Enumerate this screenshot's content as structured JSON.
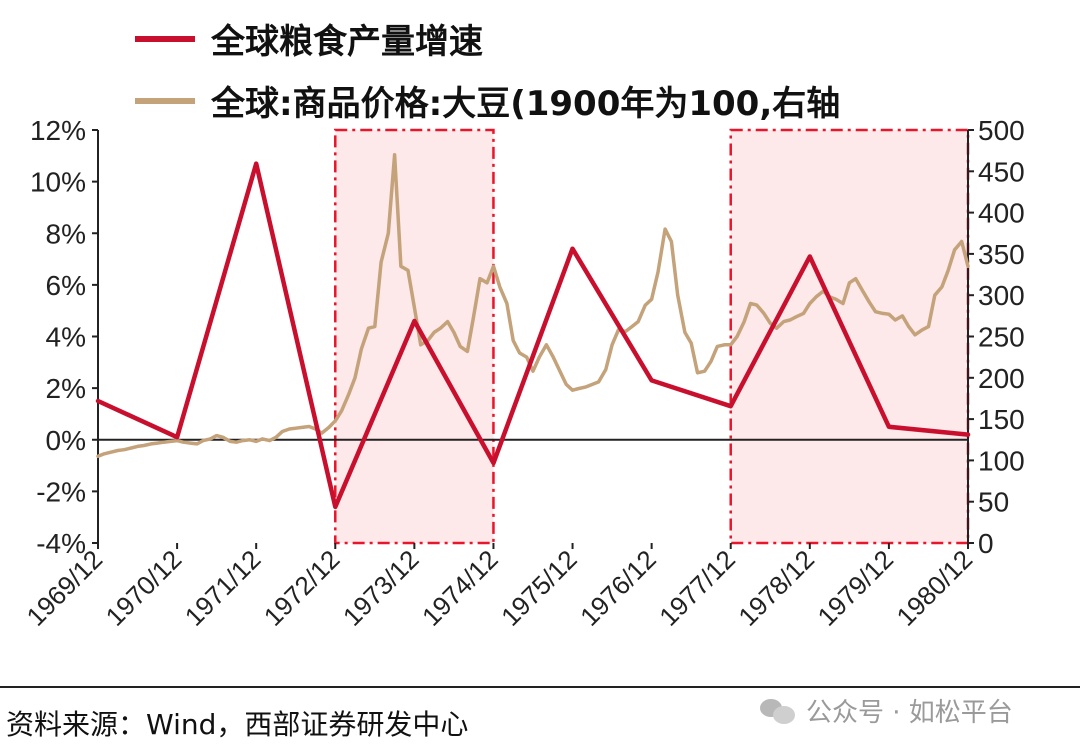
{
  "chart_data": {
    "type": "line",
    "legend": [
      {
        "name": "全球粮食产量增速",
        "color": "#c8102e"
      },
      {
        "name": "全球:商品价格:大豆(1900年为100,右轴",
        "color": "#c4a27a"
      }
    ],
    "x_categories": [
      "1969/12",
      "1970/12",
      "1971/12",
      "1972/12",
      "1973/12",
      "1974/12",
      "1975/12",
      "1976/12",
      "1977/12",
      "1978/12",
      "1979/12",
      "1980/12"
    ],
    "y_left": {
      "ylim": [
        -4,
        12
      ],
      "ticks": [
        "12%",
        "10%",
        "8%",
        "6%",
        "4%",
        "2%",
        "0%",
        "-2%",
        "-4%"
      ]
    },
    "y_right": {
      "ylim": [
        0,
        500
      ],
      "ticks": [
        "500",
        "450",
        "400",
        "350",
        "300",
        "250",
        "200",
        "150",
        "100",
        "50",
        "0"
      ]
    },
    "shaded_ranges": [
      [
        3.0,
        5.0
      ],
      [
        8.0,
        11.0
      ]
    ],
    "series": [
      {
        "name": "全球粮食产量增速",
        "axis": "left",
        "color": "#c8102e",
        "points": [
          [
            0,
            1.5
          ],
          [
            1,
            0.1
          ],
          [
            2,
            10.7
          ],
          [
            3,
            -2.6
          ],
          [
            4,
            4.6
          ],
          [
            5,
            -0.9
          ],
          [
            6,
            7.4
          ],
          [
            7,
            2.3
          ],
          [
            8,
            1.3
          ],
          [
            9,
            7.1
          ],
          [
            10,
            0.5
          ],
          [
            11,
            0.2
          ]
        ]
      },
      {
        "name": "全球:商品价格:大豆(1900年为100,右轴",
        "axis": "right",
        "color": "#c4a27a",
        "points": [
          [
            0,
            105
          ],
          [
            0.08,
            108
          ],
          [
            0.17,
            110
          ],
          [
            0.25,
            112
          ],
          [
            0.33,
            113
          ],
          [
            0.42,
            115
          ],
          [
            0.5,
            117
          ],
          [
            0.58,
            118
          ],
          [
            0.67,
            120
          ],
          [
            0.75,
            121
          ],
          [
            0.83,
            122
          ],
          [
            0.92,
            123
          ],
          [
            1,
            124
          ],
          [
            1.08,
            122
          ],
          [
            1.17,
            121
          ],
          [
            1.25,
            120
          ],
          [
            1.33,
            124
          ],
          [
            1.42,
            126
          ],
          [
            1.5,
            130
          ],
          [
            1.58,
            128
          ],
          [
            1.67,
            123
          ],
          [
            1.75,
            122
          ],
          [
            1.83,
            124
          ],
          [
            1.92,
            125
          ],
          [
            2,
            123
          ],
          [
            2.08,
            126
          ],
          [
            2.17,
            124
          ],
          [
            2.25,
            128
          ],
          [
            2.33,
            135
          ],
          [
            2.42,
            138
          ],
          [
            2.5,
            139
          ],
          [
            2.58,
            140
          ],
          [
            2.67,
            141
          ],
          [
            2.75,
            138
          ],
          [
            2.83,
            133
          ],
          [
            2.92,
            140
          ],
          [
            3,
            148
          ],
          [
            3.08,
            160
          ],
          [
            3.17,
            180
          ],
          [
            3.25,
            200
          ],
          [
            3.33,
            235
          ],
          [
            3.42,
            260
          ],
          [
            3.5,
            262
          ],
          [
            3.58,
            340
          ],
          [
            3.67,
            375
          ],
          [
            3.75,
            470
          ],
          [
            3.83,
            335
          ],
          [
            3.92,
            330
          ],
          [
            4,
            285
          ],
          [
            4.08,
            240
          ],
          [
            4.17,
            245
          ],
          [
            4.25,
            255
          ],
          [
            4.33,
            260
          ],
          [
            4.42,
            268
          ],
          [
            4.5,
            255
          ],
          [
            4.58,
            238
          ],
          [
            4.67,
            232
          ],
          [
            4.75,
            275
          ],
          [
            4.83,
            320
          ],
          [
            4.92,
            315
          ],
          [
            5,
            335
          ],
          [
            5.08,
            310
          ],
          [
            5.17,
            290
          ],
          [
            5.25,
            245
          ],
          [
            5.33,
            230
          ],
          [
            5.42,
            225
          ],
          [
            5.5,
            208
          ],
          [
            5.58,
            225
          ],
          [
            5.67,
            240
          ],
          [
            5.75,
            226
          ],
          [
            5.83,
            210
          ],
          [
            5.92,
            192
          ],
          [
            6,
            185
          ],
          [
            6.08,
            187
          ],
          [
            6.17,
            189
          ],
          [
            6.25,
            192
          ],
          [
            6.33,
            195
          ],
          [
            6.42,
            210
          ],
          [
            6.5,
            240
          ],
          [
            6.58,
            258
          ],
          [
            6.67,
            256
          ],
          [
            6.75,
            262
          ],
          [
            6.83,
            268
          ],
          [
            6.92,
            288
          ],
          [
            7,
            295
          ],
          [
            7.08,
            328
          ],
          [
            7.17,
            380
          ],
          [
            7.25,
            365
          ],
          [
            7.33,
            300
          ],
          [
            7.42,
            255
          ],
          [
            7.5,
            242
          ],
          [
            7.58,
            206
          ],
          [
            7.67,
            208
          ],
          [
            7.75,
            220
          ],
          [
            7.83,
            238
          ],
          [
            7.92,
            240
          ],
          [
            8,
            240
          ],
          [
            8.08,
            250
          ],
          [
            8.17,
            268
          ],
          [
            8.25,
            290
          ],
          [
            8.33,
            288
          ],
          [
            8.42,
            278
          ],
          [
            8.5,
            266
          ],
          [
            8.58,
            260
          ],
          [
            8.67,
            268
          ],
          [
            8.75,
            270
          ],
          [
            8.83,
            274
          ],
          [
            8.92,
            278
          ],
          [
            9,
            290
          ],
          [
            9.08,
            298
          ],
          [
            9.17,
            305
          ],
          [
            9.25,
            298
          ],
          [
            9.33,
            295
          ],
          [
            9.42,
            290
          ],
          [
            9.5,
            315
          ],
          [
            9.58,
            320
          ],
          [
            9.67,
            305
          ],
          [
            9.75,
            292
          ],
          [
            9.83,
            280
          ],
          [
            9.92,
            278
          ],
          [
            10,
            277
          ],
          [
            10.08,
            270
          ],
          [
            10.17,
            275
          ],
          [
            10.25,
            262
          ],
          [
            10.33,
            252
          ],
          [
            10.42,
            258
          ],
          [
            10.5,
            262
          ],
          [
            10.58,
            300
          ],
          [
            10.67,
            310
          ],
          [
            10.75,
            330
          ],
          [
            10.83,
            355
          ],
          [
            10.92,
            365
          ],
          [
            11,
            335
          ]
        ]
      }
    ]
  },
  "footer": {
    "source": "资料来源：Wind，西部证券研发中心",
    "watermark": "公众号 · 如松平台"
  }
}
